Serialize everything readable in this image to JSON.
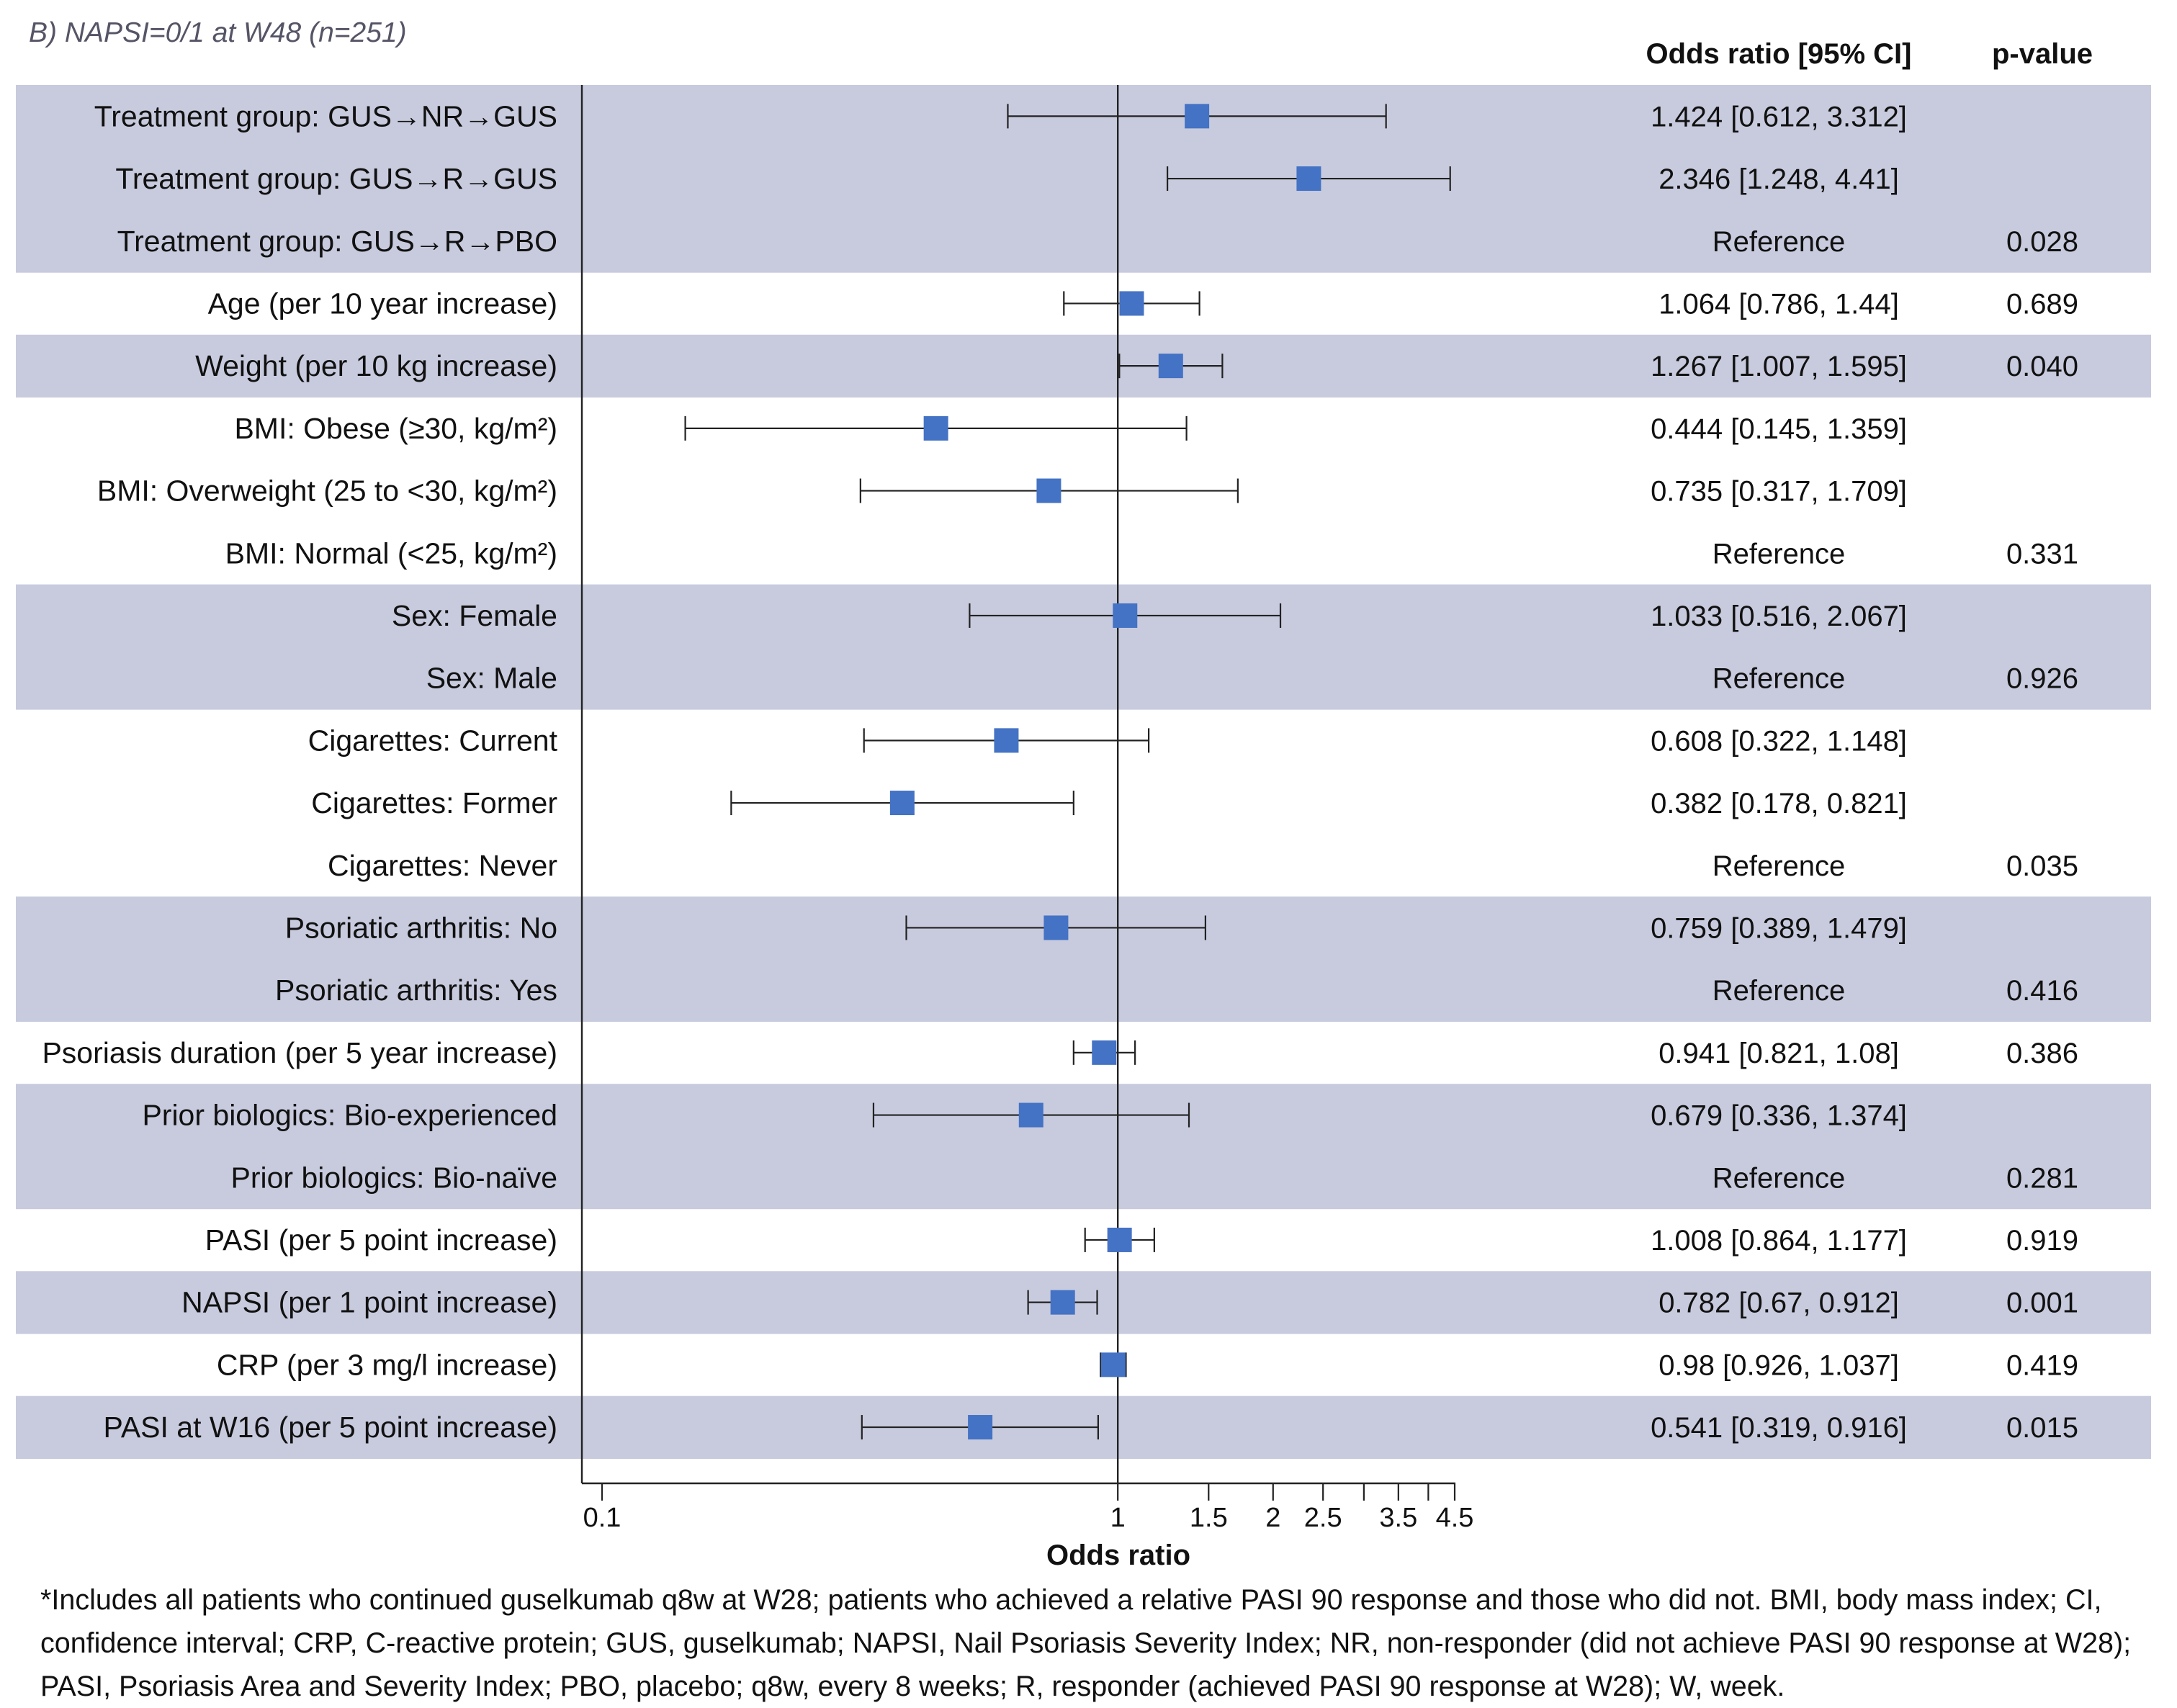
{
  "chart_data": {
    "type": "forest",
    "title": "B) NAPSI=0/1 at W48 (n=251)",
    "columns": {
      "or_header": "Odds ratio [95% CI]",
      "p_header": "p-value"
    },
    "xlabel": "Odds ratio",
    "xscale": "log",
    "xlim": [
      0.09,
      4.7
    ],
    "xticks": [
      "0.1",
      "1",
      "1.5",
      "2",
      "2.5",
      "3.5",
      "4.5"
    ],
    "minor_ticks": [
      3,
      4
    ],
    "reference_line": 1,
    "colors": {
      "band": "#c8cbde",
      "marker": "#4472c4",
      "line": "#222222"
    },
    "rows": [
      {
        "label": "Treatment group: GUS→NR→GUS",
        "or": 1.424,
        "lo": 0.612,
        "hi": 3.312,
        "text": "1.424 [0.612, 3.312]",
        "p": "",
        "band": true
      },
      {
        "label": "Treatment group: GUS→R→GUS",
        "or": 2.346,
        "lo": 1.248,
        "hi": 4.41,
        "text": "2.346 [1.248, 4.41]",
        "p": "",
        "band": true
      },
      {
        "label": "Treatment group: GUS→R→PBO",
        "or": null,
        "lo": null,
        "hi": null,
        "text": "Reference",
        "p": "0.028",
        "band": true
      },
      {
        "label": "Age (per 10 year increase)",
        "or": 1.064,
        "lo": 0.786,
        "hi": 1.44,
        "text": "1.064 [0.786, 1.44]",
        "p": "0.689",
        "band": false
      },
      {
        "label": "Weight (per 10 kg increase)",
        "or": 1.267,
        "lo": 1.007,
        "hi": 1.595,
        "text": "1.267 [1.007, 1.595]",
        "p": "0.040",
        "band": true
      },
      {
        "label": "BMI: Obese (≥30, kg/m²)",
        "or": 0.444,
        "lo": 0.145,
        "hi": 1.359,
        "text": "0.444 [0.145, 1.359]",
        "p": "",
        "band": false
      },
      {
        "label": "BMI: Overweight (25 to <30, kg/m²)",
        "or": 0.735,
        "lo": 0.317,
        "hi": 1.709,
        "text": "0.735 [0.317, 1.709]",
        "p": "",
        "band": false
      },
      {
        "label": "BMI: Normal (<25, kg/m²)",
        "or": null,
        "lo": null,
        "hi": null,
        "text": "Reference",
        "p": "0.331",
        "band": false
      },
      {
        "label": "Sex: Female",
        "or": 1.033,
        "lo": 0.516,
        "hi": 2.067,
        "text": "1.033 [0.516, 2.067]",
        "p": "",
        "band": true
      },
      {
        "label": "Sex: Male",
        "or": null,
        "lo": null,
        "hi": null,
        "text": "Reference",
        "p": "0.926",
        "band": true
      },
      {
        "label": "Cigarettes: Current",
        "or": 0.608,
        "lo": 0.322,
        "hi": 1.148,
        "text": "0.608 [0.322, 1.148]",
        "p": "",
        "band": false
      },
      {
        "label": "Cigarettes: Former",
        "or": 0.382,
        "lo": 0.178,
        "hi": 0.821,
        "text": "0.382 [0.178, 0.821]",
        "p": "",
        "band": false
      },
      {
        "label": "Cigarettes: Never",
        "or": null,
        "lo": null,
        "hi": null,
        "text": "Reference",
        "p": "0.035",
        "band": false
      },
      {
        "label": "Psoriatic arthritis: No",
        "or": 0.759,
        "lo": 0.389,
        "hi": 1.479,
        "text": "0.759 [0.389, 1.479]",
        "p": "",
        "band": true
      },
      {
        "label": "Psoriatic arthritis: Yes",
        "or": null,
        "lo": null,
        "hi": null,
        "text": "Reference",
        "p": "0.416",
        "band": true
      },
      {
        "label": "Psoriasis duration (per 5 year increase)",
        "or": 0.941,
        "lo": 0.821,
        "hi": 1.08,
        "text": "0.941 [0.821, 1.08]",
        "p": "0.386",
        "band": false
      },
      {
        "label": "Prior biologics: Bio-experienced",
        "or": 0.679,
        "lo": 0.336,
        "hi": 1.374,
        "text": "0.679 [0.336, 1.374]",
        "p": "",
        "band": true
      },
      {
        "label": "Prior biologics: Bio-naïve",
        "or": null,
        "lo": null,
        "hi": null,
        "text": "Reference",
        "p": "0.281",
        "band": true
      },
      {
        "label": "PASI (per 5 point increase)",
        "or": 1.008,
        "lo": 0.864,
        "hi": 1.177,
        "text": "1.008 [0.864, 1.177]",
        "p": "0.919",
        "band": false
      },
      {
        "label": "NAPSI (per 1 point increase)",
        "or": 0.782,
        "lo": 0.67,
        "hi": 0.912,
        "text": "0.782 [0.67, 0.912]",
        "p": "0.001",
        "band": true
      },
      {
        "label": "CRP (per 3 mg/l increase)",
        "or": 0.98,
        "lo": 0.926,
        "hi": 1.037,
        "text": "0.98 [0.926, 1.037]",
        "p": "0.419",
        "band": false
      },
      {
        "label": "PASI at W16 (per 5 point increase)",
        "or": 0.541,
        "lo": 0.319,
        "hi": 0.916,
        "text": "0.541 [0.319, 0.916]",
        "p": "0.015",
        "band": true
      }
    ]
  },
  "footnote": "*Includes all patients who continued guselkumab q8w at W28; patients who achieved a relative PASI 90 response and those who did not. BMI, body mass index; CI, confidence interval; CRP, C-reactive protein; GUS, guselkumab; NAPSI, Nail Psoriasis Severity Index; NR, non-responder (did not achieve PASI 90 response at W28); PASI, Psoriasis Area and Severity Index; PBO, placebo; q8w, every 8 weeks; R, responder (achieved PASI 90 response at W28); W, week."
}
